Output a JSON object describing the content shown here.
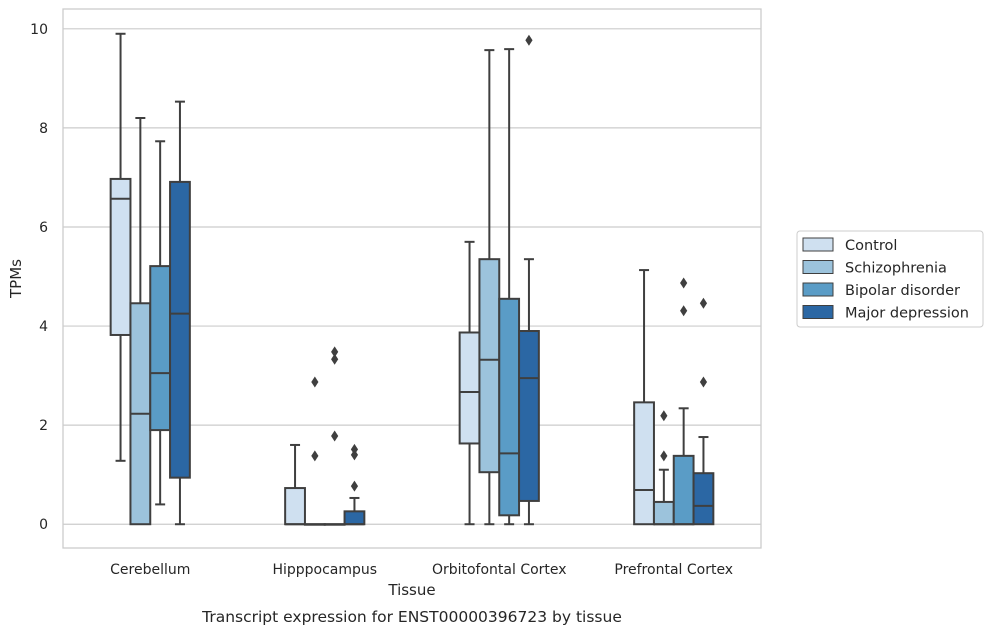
{
  "chart_data": {
    "type": "boxplot",
    "caption": "Transcript expression for ENST00000396723 by tissue",
    "xlabel": "Tissue",
    "ylabel": "TPMs",
    "ylim": [
      -0.48,
      10.4
    ],
    "yticks": [
      0,
      2,
      4,
      6,
      8,
      10
    ],
    "grid": "horizontal",
    "legend_position": "right",
    "categories": [
      "Cerebellum",
      "Hipppocampus",
      "Orbitofontal Cortex",
      "Prefrontal Cortex"
    ],
    "series": [
      {
        "name": "Control",
        "color": "#cfe0f0",
        "boxes": [
          {
            "whisker_low": 1.28,
            "q1": 3.82,
            "median": 6.57,
            "q3": 6.97,
            "whisker_high": 9.9,
            "outliers": []
          },
          {
            "whisker_low": 0,
            "q1": 0,
            "median": 0,
            "q3": 0.73,
            "whisker_high": 1.6,
            "outliers": []
          },
          {
            "whisker_low": 0,
            "q1": 1.63,
            "median": 2.67,
            "q3": 3.87,
            "whisker_high": 5.7,
            "outliers": []
          },
          {
            "whisker_low": 0,
            "q1": 0,
            "median": 0.69,
            "q3": 2.46,
            "whisker_high": 5.13,
            "outliers": []
          }
        ]
      },
      {
        "name": "Schizophrenia",
        "color": "#9cc3dc",
        "boxes": [
          {
            "whisker_low": 0,
            "q1": 0,
            "median": 2.23,
            "q3": 4.46,
            "whisker_high": 8.2,
            "outliers": []
          },
          {
            "whisker_low": 0,
            "q1": 0,
            "median": 0,
            "q3": 0,
            "whisker_high": 0,
            "outliers": [
              1.38,
              2.87
            ]
          },
          {
            "whisker_low": 0,
            "q1": 1.05,
            "median": 3.32,
            "q3": 5.35,
            "whisker_high": 9.57,
            "outliers": []
          },
          {
            "whisker_low": 0,
            "q1": 0,
            "median": 0,
            "q3": 0.45,
            "whisker_high": 1.1,
            "outliers": [
              1.38,
              2.19
            ]
          }
        ]
      },
      {
        "name": "Bipolar disorder",
        "color": "#5a9cc6",
        "boxes": [
          {
            "whisker_low": 0.4,
            "q1": 1.9,
            "median": 3.05,
            "q3": 5.21,
            "whisker_high": 7.73,
            "outliers": []
          },
          {
            "whisker_low": 0,
            "q1": 0,
            "median": 0,
            "q3": 0,
            "whisker_high": 0,
            "outliers": [
              1.78,
              3.33,
              3.48
            ]
          },
          {
            "whisker_low": 0,
            "q1": 0.18,
            "median": 1.43,
            "q3": 4.55,
            "whisker_high": 9.59,
            "outliers": []
          },
          {
            "whisker_low": 0,
            "q1": 0,
            "median": 0,
            "q3": 1.38,
            "whisker_high": 2.34,
            "outliers": [
              4.31,
              4.87
            ]
          }
        ]
      },
      {
        "name": "Major depression",
        "color": "#2b67a4",
        "boxes": [
          {
            "whisker_low": 0,
            "q1": 0.94,
            "median": 4.25,
            "q3": 6.91,
            "whisker_high": 8.53,
            "outliers": []
          },
          {
            "whisker_low": 0,
            "q1": 0,
            "median": 0,
            "q3": 0.26,
            "whisker_high": 0.53,
            "outliers": [
              0.77,
              1.4,
              1.51
            ]
          },
          {
            "whisker_low": 0,
            "q1": 0.47,
            "median": 2.95,
            "q3": 3.9,
            "whisker_high": 5.35,
            "outliers": [
              9.77
            ]
          },
          {
            "whisker_low": 0,
            "q1": 0,
            "median": 0.37,
            "q3": 1.03,
            "whisker_high": 1.76,
            "outliers": [
              2.87,
              4.46
            ]
          }
        ]
      }
    ]
  }
}
